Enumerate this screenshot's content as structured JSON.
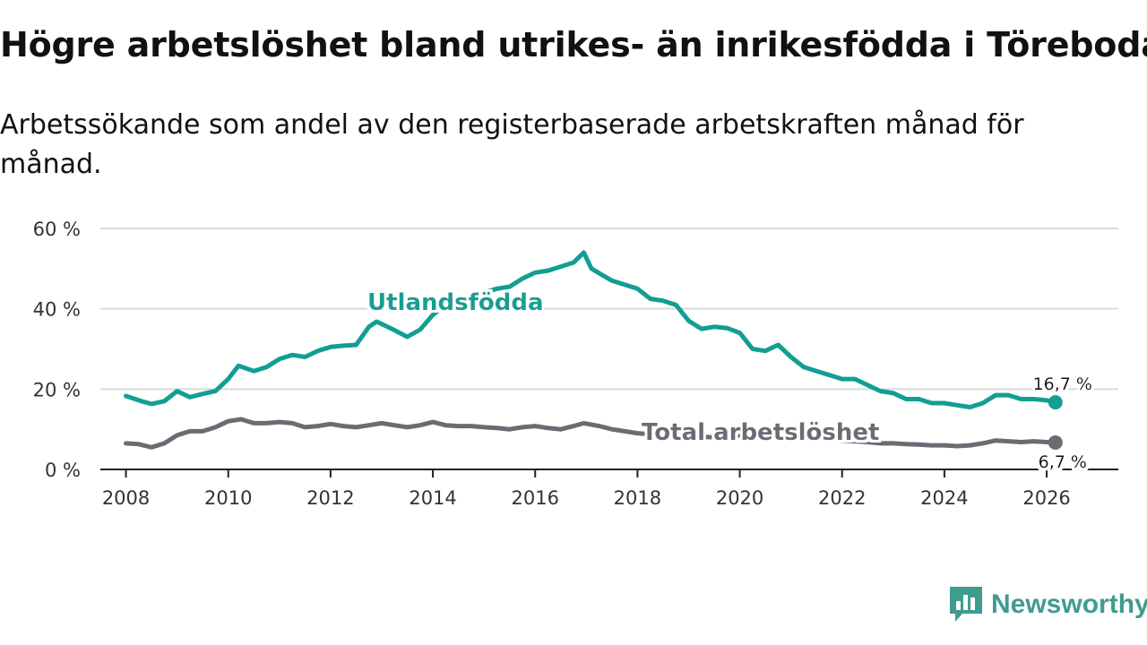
{
  "title": "Högre arbetslöshet bland utrikes- än inrikesfödda i Töreboda",
  "subtitle": "Arbetssökande som andel av den registerbaserade arbetskraften månad för månad.",
  "brand": {
    "name": "Newsworthy",
    "color": "#3f9c8f"
  },
  "chart_data": {
    "type": "line",
    "title": "Högre arbetslöshet bland utrikes- än inrikesfödda i Töreboda",
    "subtitle": "Arbetssökande som andel av den registerbaserade arbetskraften månad för månad.",
    "xlabel": "",
    "ylabel": "",
    "xlim": [
      2007.5,
      2027.4
    ],
    "ylim": [
      0,
      60
    ],
    "x_ticks": [
      2008,
      2010,
      2012,
      2014,
      2016,
      2018,
      2020,
      2022,
      2024,
      2026
    ],
    "x_tick_labels": [
      "2008",
      "2010",
      "2012",
      "2014",
      "2016",
      "2018",
      "2020",
      "2022",
      "2024",
      "2026"
    ],
    "y_ticks": [
      0,
      20,
      40,
      60
    ],
    "y_tick_labels": [
      "0 %",
      "20 %",
      "40 %",
      "60 %"
    ],
    "grid": true,
    "legend": "inline labels",
    "series": [
      {
        "name": "Utlandsfödda",
        "color": "#129e93",
        "end_label": "16,7 %",
        "x": [
          2008.0,
          2008.3,
          2008.5,
          2008.75,
          2009.0,
          2009.25,
          2009.5,
          2009.75,
          2010.0,
          2010.2,
          2010.5,
          2010.75,
          2011.0,
          2011.25,
          2011.5,
          2011.75,
          2012.0,
          2012.25,
          2012.5,
          2012.75,
          2012.9,
          2013.2,
          2013.5,
          2013.75,
          2014.0,
          2014.25,
          2014.5,
          2014.75,
          2015.0,
          2015.25,
          2015.5,
          2015.75,
          2016.0,
          2016.25,
          2016.5,
          2016.75,
          2016.95,
          2017.1,
          2017.3,
          2017.5,
          2017.75,
          2018.0,
          2018.25,
          2018.5,
          2018.75,
          2019.0,
          2019.25,
          2019.5,
          2019.75,
          2020.0,
          2020.25,
          2020.5,
          2020.75,
          2021.0,
          2021.25,
          2021.5,
          2021.75,
          2022.0,
          2022.25,
          2022.5,
          2022.75,
          2023.0,
          2023.25,
          2023.5,
          2023.75,
          2024.0,
          2024.25,
          2024.5,
          2024.75,
          2025.0,
          2025.25,
          2025.5,
          2025.75,
          2026.0,
          2026.17
        ],
        "y": [
          18.3,
          17.0,
          16.3,
          17.0,
          19.5,
          18.0,
          18.8,
          19.5,
          22.5,
          25.8,
          24.5,
          25.5,
          27.5,
          28.5,
          28.0,
          29.5,
          30.5,
          30.8,
          31.0,
          35.5,
          36.8,
          35.0,
          33.0,
          34.8,
          38.5,
          41.0,
          42.0,
          43.0,
          44.0,
          45.0,
          45.5,
          47.5,
          49.0,
          49.5,
          50.5,
          51.5,
          54.0,
          50.0,
          48.5,
          47.0,
          46.0,
          45.0,
          42.5,
          42.0,
          41.0,
          37.0,
          35.0,
          35.5,
          35.2,
          34.0,
          30.0,
          29.5,
          31.0,
          28.0,
          25.5,
          24.5,
          23.5,
          22.5,
          22.5,
          21.0,
          19.5,
          19.0,
          17.5,
          17.5,
          16.5,
          16.5,
          16.0,
          15.5,
          16.5,
          18.5,
          18.5,
          17.5,
          17.5,
          17.2,
          16.7
        ]
      },
      {
        "name": "Total arbetslöshet",
        "color": "#6e6a74",
        "end_label": "6,7 %",
        "x": [
          2008.0,
          2008.25,
          2008.5,
          2008.75,
          2009.0,
          2009.25,
          2009.5,
          2009.75,
          2010.0,
          2010.25,
          2010.5,
          2010.75,
          2011.0,
          2011.25,
          2011.5,
          2011.75,
          2012.0,
          2012.25,
          2012.5,
          2012.75,
          2013.0,
          2013.25,
          2013.5,
          2013.75,
          2014.0,
          2014.25,
          2014.5,
          2014.75,
          2015.0,
          2015.25,
          2015.5,
          2015.75,
          2016.0,
          2016.25,
          2016.5,
          2016.75,
          2016.95,
          2017.25,
          2017.5,
          2017.75,
          2018.0,
          2018.5,
          2019.0,
          2019.5,
          2020.0,
          2020.5,
          2021.0,
          2021.5,
          2022.0,
          2022.5,
          2022.75,
          2023.0,
          2023.25,
          2023.5,
          2023.75,
          2024.0,
          2024.25,
          2024.5,
          2024.75,
          2025.0,
          2025.25,
          2025.5,
          2025.75,
          2026.0,
          2026.17
        ],
        "y": [
          6.5,
          6.3,
          5.5,
          6.5,
          8.5,
          9.5,
          9.5,
          10.5,
          12.0,
          12.5,
          11.5,
          11.5,
          11.8,
          11.5,
          10.5,
          10.8,
          11.3,
          10.8,
          10.5,
          11.0,
          11.5,
          11.0,
          10.5,
          11.0,
          11.8,
          11.0,
          10.8,
          10.8,
          10.5,
          10.3,
          10.0,
          10.5,
          10.8,
          10.3,
          10.0,
          10.8,
          11.5,
          10.8,
          10.0,
          9.5,
          9.0,
          8.5,
          8.2,
          8.0,
          8.5,
          8.3,
          8.0,
          7.5,
          7.2,
          6.8,
          6.5,
          6.5,
          6.3,
          6.2,
          6.0,
          6.0,
          5.8,
          6.0,
          6.5,
          7.2,
          7.0,
          6.8,
          7.0,
          6.8,
          6.7
        ]
      }
    ]
  }
}
